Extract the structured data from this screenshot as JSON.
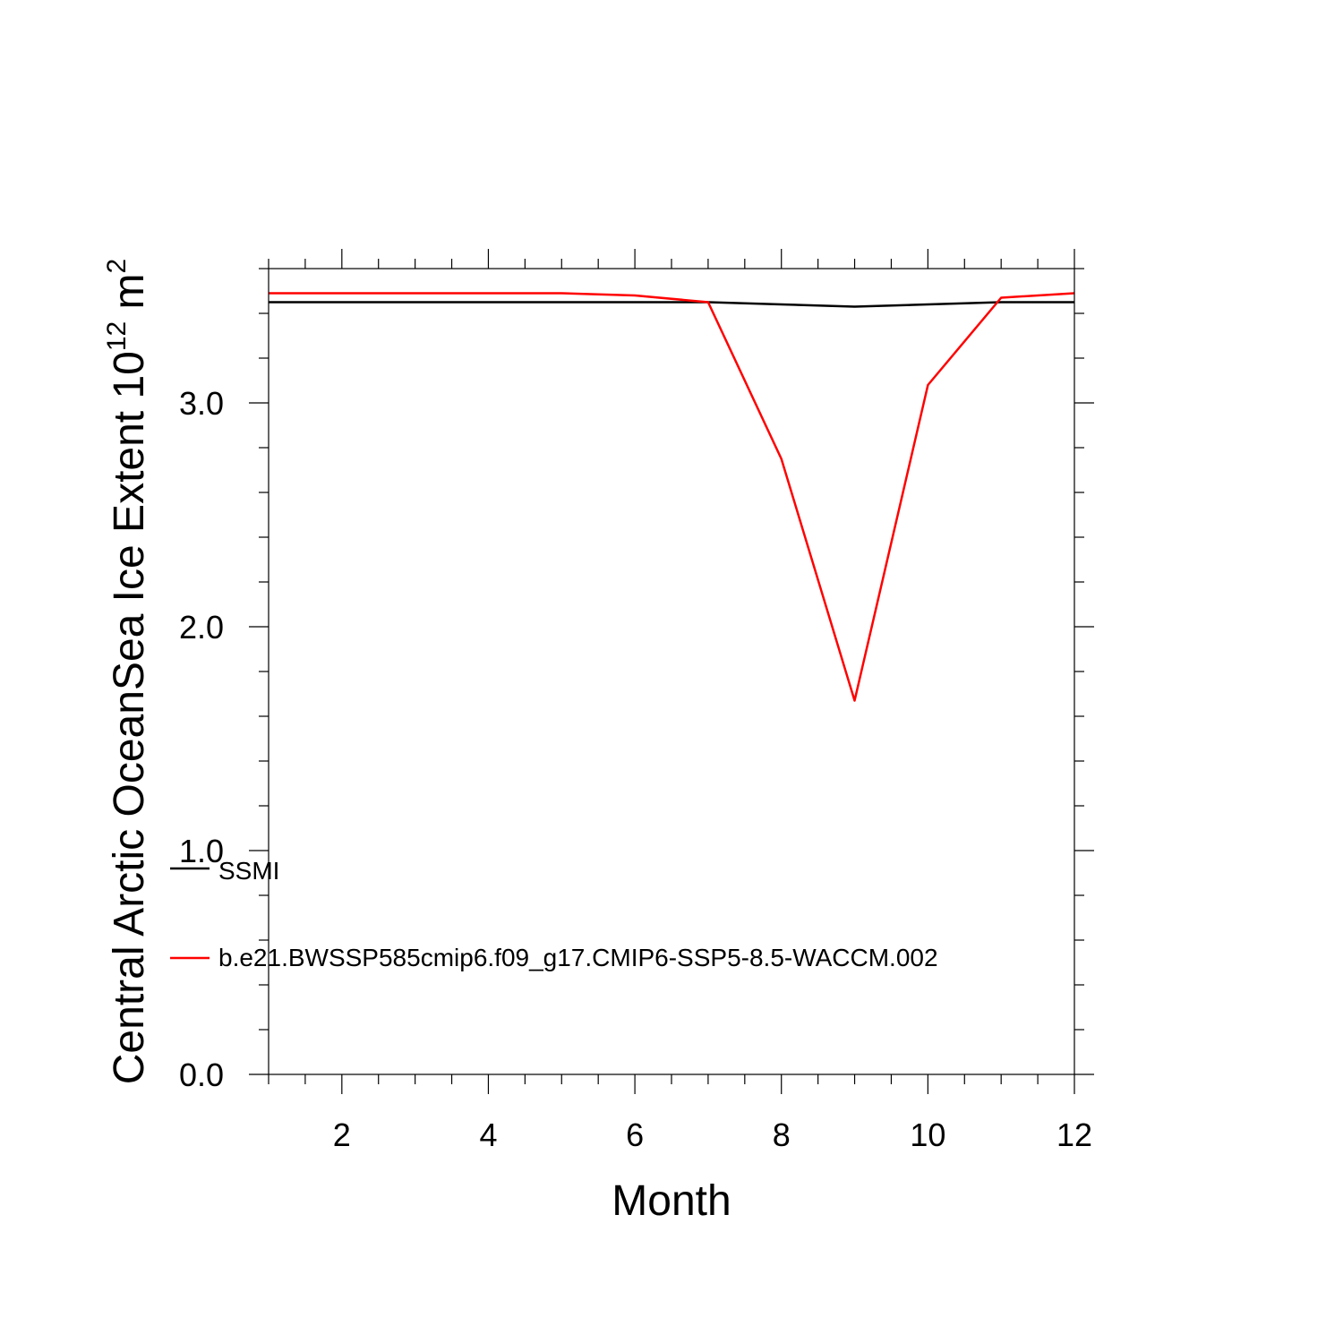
{
  "chart_data": {
    "type": "line",
    "title": "",
    "xlabel": "Month",
    "ylabel_main": "Central Arctic OceanSea Ice Extent 10",
    "ylabel_exponent": "12",
    "ylabel_unit": " m",
    "ylabel_unit_exponent": "2",
    "xlim": [
      1,
      12
    ],
    "ylim": [
      0,
      3.6
    ],
    "x_major_ticks": [
      2,
      4,
      6,
      8,
      10,
      12
    ],
    "x_tick_labels": [
      "2",
      "4",
      "6",
      "8",
      "10",
      "12"
    ],
    "x_minor_step": 0.5,
    "y_major_ticks": [
      0,
      1,
      2,
      3
    ],
    "y_tick_labels": [
      "0.0",
      "1.0",
      "2.0",
      "3.0"
    ],
    "y_minor_step": 0.2,
    "x": [
      1,
      2,
      3,
      4,
      5,
      6,
      7,
      8,
      9,
      10,
      11,
      12
    ],
    "series": [
      {
        "name": "SSMI",
        "color": "#000000",
        "values": [
          3.45,
          3.45,
          3.45,
          3.45,
          3.45,
          3.45,
          3.45,
          3.44,
          3.43,
          3.44,
          3.45,
          3.45
        ]
      },
      {
        "name": "b.e21.BWSSP585cmip6.f09_g17.CMIP6-SSP5-8.5-WACCM.002",
        "color": "#ff0000",
        "values": [
          3.49,
          3.49,
          3.49,
          3.49,
          3.49,
          3.48,
          3.45,
          2.75,
          1.67,
          3.08,
          3.47,
          3.49
        ]
      }
    ],
    "legend_position": "bottom-left inside",
    "grid": false
  }
}
